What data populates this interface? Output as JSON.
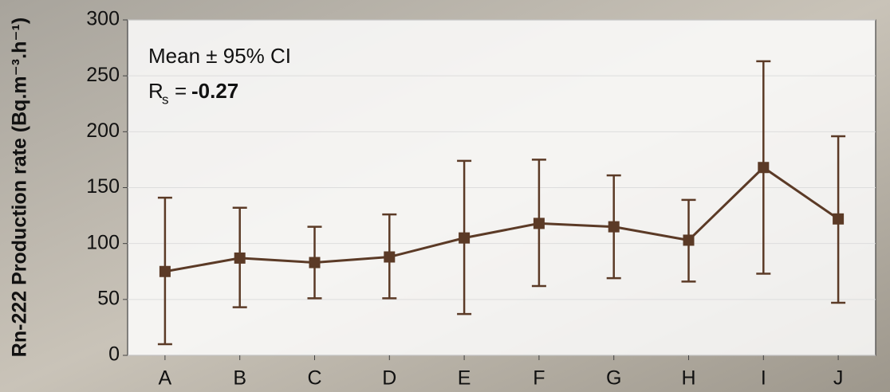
{
  "chart_data": {
    "type": "errorbar-line",
    "y_label": "Rn-222 Production rate (Bq.m⁻³.h⁻¹)",
    "annotation": "Mean ± 95% CI",
    "rs_label": "R",
    "rs_subscript": "s",
    "rs_equals": "=",
    "rs_value": "-0.27",
    "categories": [
      "A",
      "B",
      "C",
      "D",
      "E",
      "F",
      "G",
      "H",
      "I",
      "J"
    ],
    "values": [
      75,
      87,
      83,
      88,
      105,
      118,
      115,
      103,
      168,
      122
    ],
    "lower": [
      10,
      43,
      51,
      51,
      37,
      62,
      69,
      66,
      73,
      47
    ],
    "upper": [
      141,
      132,
      115,
      126,
      174,
      175,
      161,
      139,
      263,
      196
    ],
    "color": "#5b3a26",
    "ylim": [
      0,
      300
    ],
    "yticks": [
      0,
      50,
      100,
      150,
      200,
      250,
      300
    ],
    "grid": true
  }
}
